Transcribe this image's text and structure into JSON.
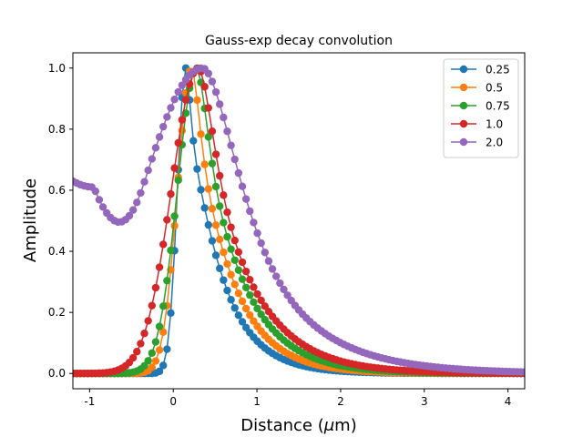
{
  "chart_data": {
    "type": "line",
    "title": "Gauss-exp decay convolution",
    "xlabel": "Distance (",
    "xlabel_symbol": "μ",
    "xlabel_unit": "m)",
    "ylabel": "Amplitude",
    "xlim": [
      -1.2,
      4.2
    ],
    "ylim": [
      -0.05,
      1.05
    ],
    "xticks": [
      "-1",
      "0",
      "1",
      "2",
      "3",
      "4"
    ],
    "xtick_values": [
      -1,
      0,
      1,
      2,
      3,
      4
    ],
    "yticks": [
      "0.0",
      "0.2",
      "0.4",
      "0.6",
      "0.8",
      "1.0"
    ],
    "ytick_values": [
      0,
      0.2,
      0.4,
      0.6,
      0.8,
      1.0
    ],
    "grid": false,
    "legend_position": "top-right",
    "marker": "circle",
    "series": [
      {
        "name": "0.25",
        "color": "#1f77b4",
        "peak_x": 0.15,
        "sigma": 0.1,
        "tau": 0.38
      },
      {
        "name": "0.5",
        "color": "#ff7f0e",
        "peak_x": 0.22,
        "sigma": 0.17,
        "tau": 0.42
      },
      {
        "name": "0.75",
        "color": "#2ca02c",
        "peak_x": 0.28,
        "sigma": 0.23,
        "tau": 0.47
      },
      {
        "name": "1.0",
        "color": "#d62728",
        "peak_x": 0.3,
        "sigma": 0.32,
        "tau": 0.53
      },
      {
        "name": "2.0",
        "color": "#9467bd",
        "peak_x": 0.35,
        "sigma": 0.72,
        "tau": 0.72,
        "left_value": 0.63,
        "left_min": 0.61
      }
    ]
  }
}
